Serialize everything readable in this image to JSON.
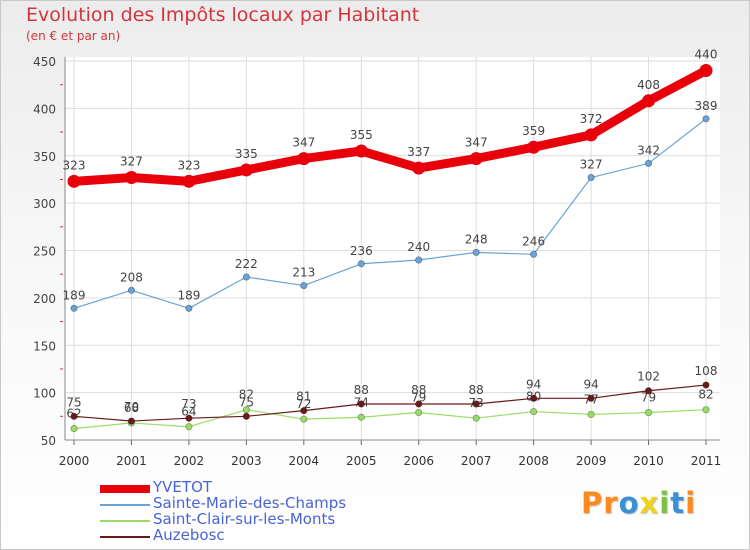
{
  "title": "Evolution des Impôts locaux par Habitant",
  "subtitle": "(en € et par an)",
  "logo": {
    "letters": [
      "P",
      "r",
      "o",
      "x",
      "i",
      "t",
      "i"
    ],
    "colors": [
      "#ff8a1c",
      "#ff8a1c",
      "#3a8fd6",
      "#f2d21b",
      "#7cc242",
      "#3a8fd6",
      "#ff8a1c"
    ]
  },
  "chart_data": {
    "type": "line",
    "x": [
      "2000",
      "2001",
      "2002",
      "2003",
      "2004",
      "2005",
      "2006",
      "2007",
      "2008",
      "2009",
      "2010",
      "2011"
    ],
    "ylim": [
      50,
      450
    ],
    "yticks": [
      "50",
      "100",
      "150",
      "200",
      "250",
      "300",
      "350",
      "400",
      "450"
    ],
    "grid": true,
    "legend_position": "bottom-left",
    "series": [
      {
        "name": "YVETOT",
        "color": "#e8000b",
        "values": [
          323,
          327,
          323,
          335,
          347,
          355,
          337,
          347,
          359,
          372,
          408,
          440
        ],
        "labels": [
          "323",
          "327",
          "323",
          "335",
          "347",
          "355",
          "337",
          "347",
          "359",
          "372",
          "408",
          "440"
        ]
      },
      {
        "name": "Sainte-Marie-des-Champs",
        "color": "#6aa3d5",
        "values": [
          189,
          208,
          189,
          222,
          213,
          236,
          240,
          248,
          246,
          327,
          342,
          389
        ],
        "labels": [
          "189",
          "208",
          "189",
          "222",
          "213",
          "236",
          "240",
          "248",
          "246",
          "327",
          "342",
          "389"
        ]
      },
      {
        "name": "Saint-Clair-sur-les-Monts",
        "color": "#99dd66",
        "values": [
          62,
          68,
          64,
          82,
          72,
          74,
          79,
          73,
          80,
          77,
          79,
          82
        ],
        "labels": [
          "62",
          "68",
          "64",
          "82",
          "72",
          "74",
          "79",
          "73",
          "80",
          "77",
          "79",
          "82"
        ]
      },
      {
        "name": "Auzebosc",
        "color": "#6b1a1a",
        "values": [
          75,
          70,
          73,
          75,
          81,
          88,
          88,
          88,
          94,
          94,
          102,
          108
        ],
        "labels": [
          "75",
          "70",
          "73",
          "75",
          "81",
          "88",
          "88",
          "88",
          "94",
          "94",
          "102",
          "108"
        ]
      }
    ]
  }
}
